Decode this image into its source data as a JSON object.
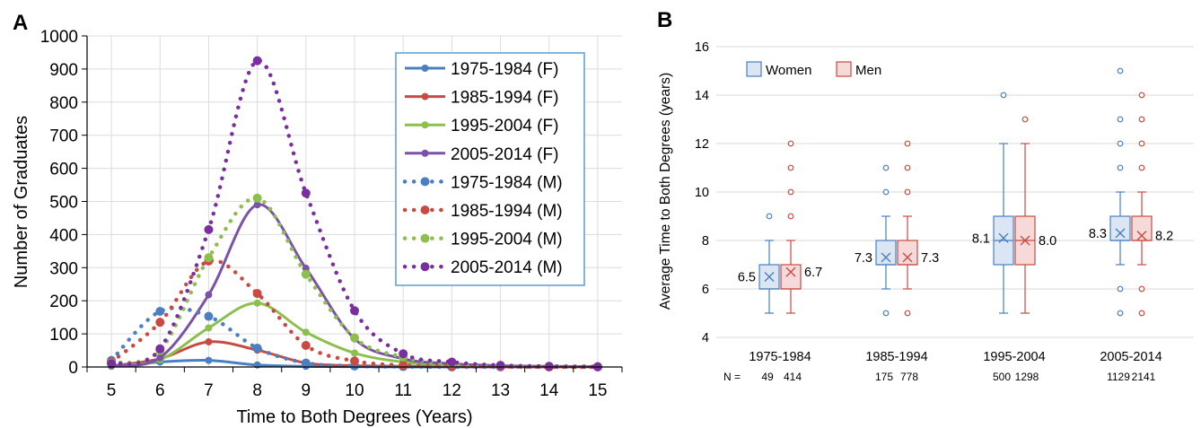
{
  "chart_data": [
    {
      "panel_label": "A",
      "type": "line",
      "title": "",
      "xlabel": "Time to Both Degrees (Years)",
      "ylabel": "Number of Graduates",
      "xlim": [
        4.5,
        15.5
      ],
      "ylim": [
        0,
        1000
      ],
      "x_ticks": [
        "5",
        "6",
        "7",
        "8",
        "9",
        "10",
        "11",
        "12",
        "13",
        "14",
        "15"
      ],
      "y_ticks": [
        "0",
        "100",
        "200",
        "300",
        "400",
        "500",
        "600",
        "700",
        "800",
        "900",
        "1000"
      ],
      "grid": true,
      "legend_position": "top-right",
      "x": [
        5,
        6,
        7,
        8,
        9,
        10,
        11,
        12,
        13,
        14,
        15
      ],
      "series": [
        {
          "name": "1975-1984 (F)",
          "style": "solid",
          "color": "#4a7fc1",
          "values": [
            2,
            15,
            20,
            6,
            2,
            1,
            0,
            0,
            0,
            0,
            0
          ]
        },
        {
          "name": "1985-1994 (F)",
          "style": "solid",
          "color": "#c94a42",
          "values": [
            3,
            25,
            76,
            51,
            12,
            4,
            2,
            1,
            0,
            0,
            0
          ]
        },
        {
          "name": "1995-2004 (F)",
          "style": "solid",
          "color": "#8cbf4d",
          "values": [
            3,
            22,
            118,
            193,
            105,
            42,
            15,
            5,
            2,
            1,
            0
          ]
        },
        {
          "name": "2005-2014 (F)",
          "style": "solid",
          "color": "#7a52a8",
          "values": [
            5,
            28,
            218,
            490,
            298,
            85,
            25,
            10,
            4,
            2,
            1
          ]
        },
        {
          "name": "1975-1984 (M)",
          "style": "dotted",
          "color": "#4a7fc1",
          "values": [
            20,
            168,
            153,
            57,
            12,
            3,
            1,
            0,
            0,
            0,
            0
          ]
        },
        {
          "name": "1985-1994 (M)",
          "style": "dotted",
          "color": "#c94a42",
          "values": [
            15,
            135,
            320,
            222,
            65,
            18,
            5,
            2,
            1,
            0,
            0
          ]
        },
        {
          "name": "1995-2004 (M)",
          "style": "dotted",
          "color": "#8cbf4d",
          "values": [
            12,
            50,
            330,
            510,
            280,
            88,
            30,
            10,
            4,
            2,
            1
          ]
        },
        {
          "name": "2005-2014 (M)",
          "style": "dotted",
          "color": "#7a2fa0",
          "values": [
            10,
            55,
            415,
            925,
            525,
            170,
            40,
            15,
            5,
            2,
            1
          ]
        }
      ]
    },
    {
      "panel_label": "B",
      "type": "box",
      "title": "",
      "xlabel": "",
      "ylabel": "Average Time to Both Degrees (years)",
      "ylim": [
        4,
        16
      ],
      "y_ticks": [
        "4",
        "6",
        "8",
        "10",
        "12",
        "14",
        "16"
      ],
      "grid": true,
      "legend_position": "top-left",
      "legend": [
        {
          "name": "Women",
          "color": "#4a7fc1",
          "fill": "#dbe6f4"
        },
        {
          "name": "Men",
          "color": "#c94a42",
          "fill": "#f6dada"
        }
      ],
      "n_prefix": "N =",
      "categories": [
        "1975-1984",
        "1985-1994",
        "1995-2004",
        "2005-2014"
      ],
      "groups": [
        {
          "women": {
            "min": 5,
            "q1": 6,
            "median": 6,
            "q3": 7,
            "max": 8,
            "mean": 6.5,
            "mean_label": "6.5",
            "outliers": [
              9
            ],
            "n": "49"
          },
          "men": {
            "min": 5,
            "q1": 6,
            "median": 6,
            "q3": 7,
            "max": 8,
            "mean": 6.7,
            "mean_label": "6.7",
            "outliers": [
              9,
              10,
              11,
              12
            ],
            "n": "414"
          }
        },
        {
          "women": {
            "min": 6,
            "q1": 7,
            "median": 7,
            "q3": 8,
            "max": 9,
            "mean": 7.3,
            "mean_label": "7.3",
            "outliers": [
              5,
              10,
              11
            ],
            "n": "175"
          },
          "men": {
            "min": 6,
            "q1": 7,
            "median": 7,
            "q3": 8,
            "max": 9,
            "mean": 7.3,
            "mean_label": "7.3",
            "outliers": [
              5,
              10,
              11,
              12
            ],
            "n": "778"
          }
        },
        {
          "women": {
            "min": 5,
            "q1": 7,
            "median": 8,
            "q3": 9,
            "max": 12,
            "mean": 8.1,
            "mean_label": "8.1",
            "outliers": [
              14
            ],
            "n": "500"
          },
          "men": {
            "min": 5,
            "q1": 7,
            "median": 8,
            "q3": 9,
            "max": 12,
            "mean": 8.0,
            "mean_label": "8.0",
            "outliers": [
              13
            ],
            "n": "1298"
          }
        },
        {
          "women": {
            "min": 7,
            "q1": 8,
            "median": 8,
            "q3": 9,
            "max": 10,
            "mean": 8.3,
            "mean_label": "8.3",
            "outliers": [
              5,
              6,
              11,
              12,
              13,
              15
            ],
            "n": "1129"
          },
          "men": {
            "min": 7,
            "q1": 8,
            "median": 8,
            "q3": 9,
            "max": 10,
            "mean": 8.2,
            "mean_label": "8.2",
            "outliers": [
              5,
              6,
              11,
              12,
              13,
              14
            ],
            "n": "2141"
          }
        }
      ]
    }
  ]
}
